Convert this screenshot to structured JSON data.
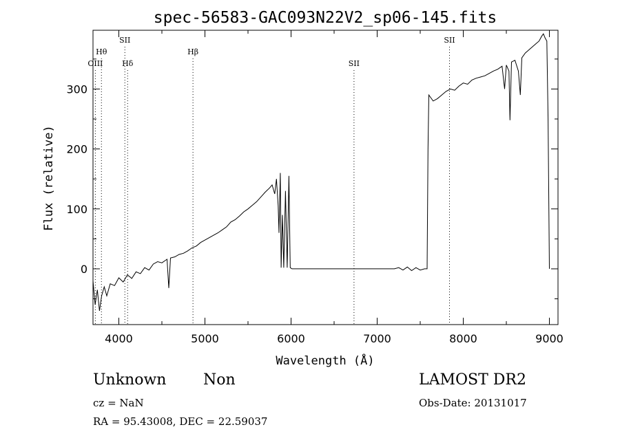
{
  "chart_data": {
    "type": "line",
    "title": "spec-56583-GAC093N22V2_sp06-145.fits",
    "xlabel": "Wavelength (Å)",
    "ylabel": "Flux (relative)",
    "xlim": [
      3700,
      9100
    ],
    "ylim": [
      -93,
      398
    ],
    "x_ticks": [
      4000,
      5000,
      6000,
      7000,
      8000,
      9000
    ],
    "y_ticks": [
      0,
      100,
      200,
      300
    ],
    "grid": false,
    "lines": [
      {
        "label": "OIII",
        "wavelength": 3727,
        "row": 3
      },
      {
        "label": "Hθ",
        "wavelength": 3798,
        "row": 2
      },
      {
        "label": "SII",
        "wavelength": 4070,
        "row": 1
      },
      {
        "label": "Hδ",
        "wavelength": 4102,
        "row": 3
      },
      {
        "label": "Hβ",
        "wavelength": 4861,
        "row": 2
      },
      {
        "label": "SII",
        "wavelength": 6731,
        "row": 3
      },
      {
        "label": "SII",
        "wavelength": 7840,
        "row": 1
      }
    ],
    "series": [
      {
        "points": [
          [
            3700,
            -20
          ],
          [
            3725,
            -60
          ],
          [
            3750,
            -35
          ],
          [
            3775,
            -70
          ],
          [
            3800,
            -45
          ],
          [
            3830,
            -30
          ],
          [
            3860,
            -45
          ],
          [
            3900,
            -25
          ],
          [
            3950,
            -28
          ],
          [
            4000,
            -15
          ],
          [
            4050,
            -22
          ],
          [
            4100,
            -10
          ],
          [
            4150,
            -16
          ],
          [
            4200,
            -5
          ],
          [
            4250,
            -8
          ],
          [
            4300,
            2
          ],
          [
            4350,
            -2
          ],
          [
            4400,
            8
          ],
          [
            4450,
            12
          ],
          [
            4500,
            10
          ],
          [
            4560,
            16
          ],
          [
            4580,
            -32
          ],
          [
            4600,
            18
          ],
          [
            4650,
            20
          ],
          [
            4700,
            24
          ],
          [
            4750,
            26
          ],
          [
            4800,
            30
          ],
          [
            4850,
            35
          ],
          [
            4900,
            38
          ],
          [
            4950,
            44
          ],
          [
            5000,
            48
          ],
          [
            5050,
            52
          ],
          [
            5100,
            56
          ],
          [
            5150,
            60
          ],
          [
            5200,
            65
          ],
          [
            5250,
            70
          ],
          [
            5300,
            78
          ],
          [
            5350,
            82
          ],
          [
            5400,
            88
          ],
          [
            5450,
            95
          ],
          [
            5500,
            100
          ],
          [
            5550,
            106
          ],
          [
            5600,
            112
          ],
          [
            5650,
            120
          ],
          [
            5700,
            128
          ],
          [
            5750,
            135
          ],
          [
            5780,
            140
          ],
          [
            5810,
            125
          ],
          [
            5830,
            150
          ],
          [
            5850,
            105
          ],
          [
            5860,
            60
          ],
          [
            5875,
            160
          ],
          [
            5885,
            2
          ],
          [
            5900,
            90
          ],
          [
            5915,
            2
          ],
          [
            5935,
            130
          ],
          [
            5955,
            2
          ],
          [
            5975,
            155
          ],
          [
            5990,
            2
          ],
          [
            6010,
            0
          ],
          [
            6200,
            0
          ],
          [
            6500,
            0
          ],
          [
            7000,
            0
          ],
          [
            7200,
            0
          ],
          [
            7250,
            2
          ],
          [
            7300,
            -2
          ],
          [
            7350,
            3
          ],
          [
            7400,
            -3
          ],
          [
            7450,
            2
          ],
          [
            7500,
            -2
          ],
          [
            7550,
            0
          ],
          [
            7580,
            0
          ],
          [
            7590,
            200
          ],
          [
            7600,
            290
          ],
          [
            7650,
            280
          ],
          [
            7700,
            284
          ],
          [
            7750,
            290
          ],
          [
            7800,
            296
          ],
          [
            7850,
            300
          ],
          [
            7900,
            298
          ],
          [
            7950,
            305
          ],
          [
            8000,
            310
          ],
          [
            8050,
            308
          ],
          [
            8100,
            315
          ],
          [
            8150,
            318
          ],
          [
            8200,
            320
          ],
          [
            8250,
            322
          ],
          [
            8300,
            326
          ],
          [
            8350,
            330
          ],
          [
            8400,
            333
          ],
          [
            8450,
            338
          ],
          [
            8480,
            300
          ],
          [
            8500,
            340
          ],
          [
            8530,
            330
          ],
          [
            8542,
            248
          ],
          [
            8560,
            345
          ],
          [
            8600,
            348
          ],
          [
            8640,
            330
          ],
          [
            8662,
            290
          ],
          [
            8680,
            352
          ],
          [
            8720,
            360
          ],
          [
            8760,
            365
          ],
          [
            8800,
            370
          ],
          [
            8840,
            375
          ],
          [
            8880,
            380
          ],
          [
            8910,
            388
          ],
          [
            8930,
            392
          ],
          [
            8950,
            385
          ],
          [
            8970,
            380
          ],
          [
            8985,
            250
          ],
          [
            9000,
            0
          ]
        ]
      }
    ]
  },
  "info": {
    "class_label": "Unknown",
    "subclass_label": "Non",
    "cz_text": "cz = NaN",
    "coords_text": "RA =   95.43008, DEC =   22.59037",
    "survey_label": "LAMOST DR2",
    "obs_date_text": "Obs-Date: 20131017"
  }
}
